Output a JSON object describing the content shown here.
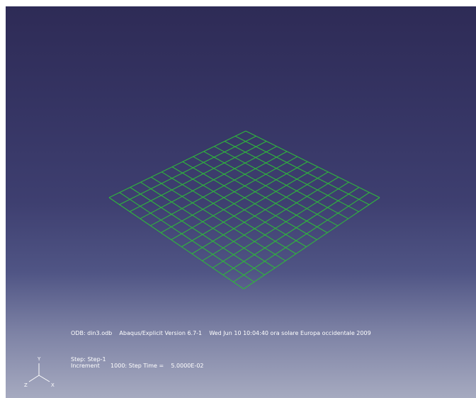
{
  "viewport": {
    "background_top": "#2e2b56",
    "background_bottom": "#a6aac0",
    "mesh_color": "#2fb53c",
    "mesh_divisions": 13
  },
  "info": {
    "odb_line": "ODB: din3.odb    Abaqus/Explicit Version 6.7-1    Wed Jun 10 10:04:40 ora solare Europa occidentale 2009",
    "step_line": "Step: Step-1",
    "increment_line": "Increment      1000: Step Time =    5.0000E-02"
  },
  "triad": {
    "x_label": "X",
    "y_label": "Y",
    "z_label": "Z"
  }
}
